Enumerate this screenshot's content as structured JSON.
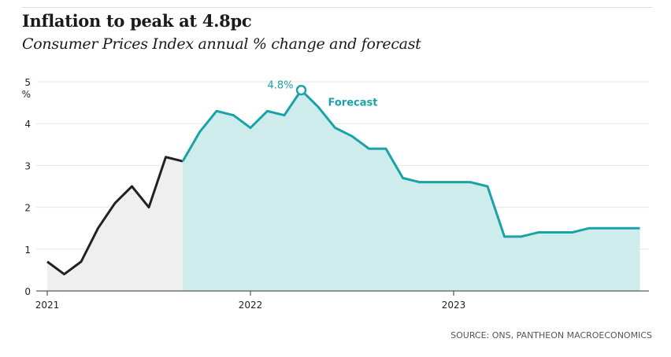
{
  "header": {
    "title": "Inflation to peak at 4.8pc",
    "subtitle": "Consumer Prices Index annual % change and forecast"
  },
  "footer": {
    "source": "SOURCE: ONS, PANTHEON MACROECONOMICS"
  },
  "chart_data": {
    "type": "area",
    "ylabel": "%",
    "ylim": [
      0,
      5
    ],
    "yticks": [
      0,
      1,
      2,
      3,
      4,
      5
    ],
    "xticks": [
      "2021",
      "2022",
      "2023"
    ],
    "grid": true,
    "colors": {
      "actual_line": "#222222",
      "actual_fill": "#efefef",
      "forecast_line": "#1aa3a6",
      "forecast_fill": "#cdeceb"
    },
    "series": [
      {
        "kind": "actual",
        "x": [
          "2021-01",
          "2021-02",
          "2021-03",
          "2021-04",
          "2021-05",
          "2021-06",
          "2021-07",
          "2021-08",
          "2021-09"
        ],
        "values": [
          0.7,
          0.4,
          0.7,
          1.5,
          2.1,
          2.5,
          2.0,
          3.2,
          3.1
        ]
      },
      {
        "name": "Forecast",
        "kind": "forecast",
        "x": [
          "2021-09",
          "2021-10",
          "2021-11",
          "2021-12",
          "2022-01",
          "2022-02",
          "2022-03",
          "2022-04",
          "2022-05",
          "2022-06",
          "2022-07",
          "2022-08",
          "2022-09",
          "2022-10",
          "2022-11",
          "2022-12",
          "2023-01",
          "2023-02",
          "2023-03",
          "2023-04",
          "2023-05",
          "2023-06",
          "2023-07",
          "2023-08",
          "2023-09",
          "2023-10",
          "2023-11",
          "2023-12"
        ],
        "values": [
          3.1,
          3.8,
          4.3,
          4.2,
          3.9,
          4.3,
          4.2,
          4.8,
          4.4,
          3.9,
          3.7,
          3.4,
          3.4,
          2.7,
          2.6,
          2.6,
          2.6,
          2.6,
          2.5,
          1.3,
          1.3,
          1.4,
          1.4,
          1.4,
          1.5,
          1.5,
          1.5,
          1.5
        ]
      }
    ],
    "annotations": [
      {
        "x": "2022-04",
        "y": 4.8,
        "text": "4.8%"
      }
    ]
  }
}
